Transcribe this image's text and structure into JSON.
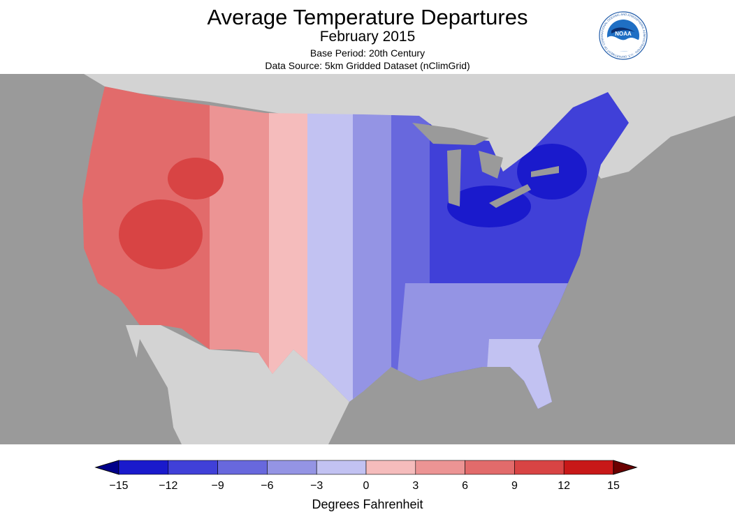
{
  "header": {
    "title": "Average Temperature Departures",
    "subtitle": "February 2015",
    "base_period": "Base Period: 20th Century",
    "data_source": "Data Source: 5km Gridded Dataset (nClimGrid)"
  },
  "logo": {
    "name": "NOAA",
    "ring_text": "NATIONAL OCEANIC AND ATMOSPHERIC ADMINISTRATION · U.S. DEPARTMENT OF COMMERCE"
  },
  "map": {
    "region": "Contiguous United States",
    "colors": {
      "ocean": "#9a9a9a",
      "land_outside": "#d3d3d3",
      "lakes": "#9a9a9a"
    },
    "pattern": {
      "west": "warmer than average (+6 to +12 °F)",
      "plains": "near average (-3 to +3 °F)",
      "east": "colder than average (-6 to -15 °F)"
    }
  },
  "legend": {
    "title": "Degrees Fahrenheit",
    "ticks": [
      "−15",
      "−12",
      "−9",
      "−6",
      "−3",
      "0",
      "3",
      "6",
      "9",
      "12",
      "15"
    ],
    "tick_values": [
      -15,
      -12,
      -9,
      -6,
      -3,
      0,
      3,
      6,
      9,
      12,
      15
    ],
    "colors": [
      "#1a1acc",
      "#4040d8",
      "#6868dd",
      "#9494e4",
      "#c2c2f2",
      "#f5bcbc",
      "#ec9494",
      "#e26b6b",
      "#d84444",
      "#c81818"
    ],
    "low_arrow_color": "#00008a",
    "high_arrow_color": "#6b0000"
  }
}
